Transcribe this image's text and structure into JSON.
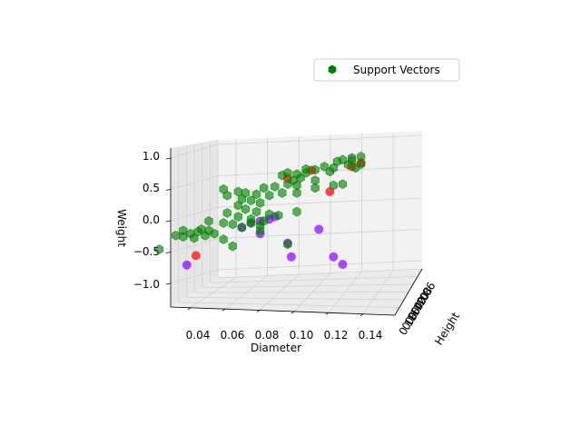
{
  "chart_data": {
    "type": "scatter",
    "projection": "3d",
    "title": "",
    "xlabel": "Diameter",
    "ylabel": "Height",
    "zlabel": "Weight",
    "x_ticks": [
      "0.04",
      "0.06",
      "0.08",
      "0.10",
      "0.12",
      "0.14"
    ],
    "y_ticks": [
      "0.06",
      "0.08",
      "0.10",
      "0.12",
      "0.14",
      "0.16",
      "0.18"
    ],
    "z_ticks": [
      "1.0",
      "0.5",
      "0.0",
      "−0.5",
      "−1.0"
    ],
    "grid": true,
    "legend": {
      "placement": "upper-right",
      "entries": [
        "Support Vectors"
      ]
    },
    "colors": {
      "support_vectors": "#008000",
      "class_red": "#ff0000",
      "class_purple": "#8b00ff"
    },
    "series": [
      {
        "name": "Support Vectors",
        "marker": "hexagon",
        "color": "#008000",
        "points": [
          [
            0.145,
            0.12,
            0.98
          ],
          [
            0.14,
            0.12,
            0.96
          ],
          [
            0.14,
            0.12,
            0.92
          ],
          [
            0.135,
            0.12,
            0.93
          ],
          [
            0.132,
            0.12,
            0.9
          ],
          [
            0.138,
            0.12,
            0.85
          ],
          [
            0.145,
            0.12,
            0.86
          ],
          [
            0.142,
            0.12,
            0.8
          ],
          [
            0.13,
            0.12,
            0.8
          ],
          [
            0.125,
            0.12,
            0.82
          ],
          [
            0.128,
            0.12,
            0.74
          ],
          [
            0.12,
            0.12,
            0.77
          ],
          [
            0.115,
            0.12,
            0.78
          ],
          [
            0.115,
            0.12,
            0.72
          ],
          [
            0.11,
            0.12,
            0.7
          ],
          [
            0.112,
            0.12,
            0.64
          ],
          [
            0.105,
            0.12,
            0.72
          ],
          [
            0.102,
            0.12,
            0.68
          ],
          [
            0.108,
            0.12,
            0.6
          ],
          [
            0.12,
            0.12,
            0.6
          ],
          [
            0.135,
            0.12,
            0.54
          ],
          [
            0.13,
            0.12,
            0.52
          ],
          [
            0.12,
            0.12,
            0.48
          ],
          [
            0.11,
            0.12,
            0.52
          ],
          [
            0.105,
            0.12,
            0.54
          ],
          [
            0.098,
            0.12,
            0.5
          ],
          [
            0.092,
            0.12,
            0.48
          ],
          [
            0.11,
            0.12,
            0.4
          ],
          [
            0.102,
            0.12,
            0.4
          ],
          [
            0.095,
            0.12,
            0.36
          ],
          [
            0.088,
            0.12,
            0.38
          ],
          [
            0.082,
            0.12,
            0.4
          ],
          [
            0.078,
            0.12,
            0.42
          ],
          [
            0.07,
            0.12,
            0.46
          ],
          [
            0.072,
            0.12,
            0.36
          ],
          [
            0.08,
            0.12,
            0.3
          ],
          [
            0.085,
            0.12,
            0.28
          ],
          [
            0.09,
            0.12,
            0.24
          ],
          [
            0.078,
            0.12,
            0.2
          ],
          [
            0.082,
            0.12,
            0.14
          ],
          [
            0.088,
            0.12,
            0.1
          ],
          [
            0.072,
            0.12,
            0.08
          ],
          [
            0.078,
            0.12,
            0.02
          ],
          [
            0.062,
            0.12,
            -0.05
          ],
          [
            0.07,
            0.12,
            -0.08
          ],
          [
            0.075,
            0.12,
            -0.1
          ],
          [
            0.062,
            0.12,
            -0.2
          ],
          [
            0.058,
            0.12,
            -0.18
          ],
          [
            0.065,
            0.12,
            -0.25
          ],
          [
            0.06,
            0.12,
            -0.28
          ],
          [
            0.056,
            0.12,
            -0.22
          ],
          [
            0.052,
            0.12,
            -0.25
          ],
          [
            0.048,
            0.12,
            -0.3
          ],
          [
            0.044,
            0.12,
            -0.28
          ],
          [
            0.048,
            0.12,
            -0.2
          ],
          [
            0.054,
            0.12,
            -0.32
          ],
          [
            0.07,
            0.12,
            -0.34
          ],
          [
            0.08,
            0.12,
            -0.15
          ],
          [
            0.085,
            0.12,
            -0.08
          ],
          [
            0.09,
            0.12,
            -0.2
          ],
          [
            0.09,
            0.12,
            -0.12
          ],
          [
            0.075,
            0.12,
            -0.45
          ],
          [
            0.035,
            0.12,
            -0.5
          ],
          [
            0.105,
            0.12,
            -0.42
          ],
          [
            0.085,
            0.12,
            -0.02
          ],
          [
            0.095,
            0.12,
            0.06
          ],
          [
            0.1,
            0.12,
            0.04
          ],
          [
            0.11,
            0.12,
            0.1
          ],
          [
            0.092,
            0.12,
            -0.05
          ]
        ]
      },
      {
        "name": "",
        "marker": "circle",
        "color": "#ff0000",
        "points": [
          [
            0.145,
            0.12,
            0.88
          ],
          [
            0.14,
            0.12,
            0.82
          ],
          [
            0.118,
            0.12,
            0.76
          ],
          [
            0.105,
            0.12,
            0.63
          ],
          [
            0.128,
            0.12,
            0.42
          ],
          [
            0.055,
            0.12,
            -0.6
          ]
        ]
      },
      {
        "name": "",
        "marker": "circle",
        "color": "#8b00ff",
        "points": [
          [
            0.09,
            0.12,
            -0.05
          ],
          [
            0.095,
            0.12,
            -0.02
          ],
          [
            0.098,
            0.12,
            0.02
          ],
          [
            0.085,
            0.12,
            -0.08
          ],
          [
            0.08,
            0.12,
            -0.15
          ],
          [
            0.09,
            0.12,
            -0.25
          ],
          [
            0.122,
            0.12,
            -0.18
          ],
          [
            0.105,
            0.12,
            -0.4
          ],
          [
            0.107,
            0.12,
            -0.62
          ],
          [
            0.13,
            0.12,
            -0.62
          ],
          [
            0.135,
            0.12,
            -0.74
          ],
          [
            0.05,
            0.12,
            -0.75
          ]
        ]
      }
    ]
  }
}
